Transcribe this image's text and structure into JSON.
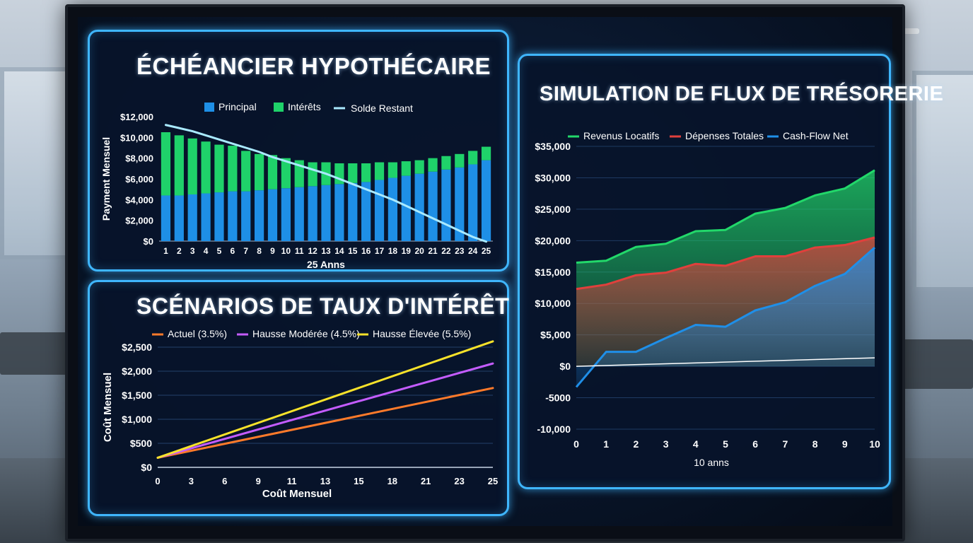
{
  "chart_data": [
    {
      "type": "bar",
      "title": "ÉCHÉANCIER HYPOTHÉCAIRE",
      "xlabel": "25 Anns",
      "ylabel": "Payment Mensuel",
      "ylim": [
        0,
        12000
      ],
      "yticks": [
        "$0",
        "$2,000",
        "$4,000",
        "$6,000",
        "$8,000",
        "$10,000",
        "$12,000"
      ],
      "categories": [
        "1",
        "2",
        "3",
        "4",
        "5",
        "6",
        "7",
        "8",
        "9",
        "10",
        "11",
        "12",
        "13",
        "14",
        "15",
        "16",
        "17",
        "18",
        "19",
        "20",
        "21",
        "22",
        "23",
        "24",
        "25"
      ],
      "stacked": true,
      "series": [
        {
          "name": "Principal",
          "color": "#1e8fe6",
          "values": [
            4400,
            4400,
            4500,
            4600,
            4700,
            4800,
            4800,
            4900,
            5000,
            5100,
            5200,
            5300,
            5400,
            5500,
            5600,
            5700,
            5900,
            6100,
            6300,
            6500,
            6700,
            6900,
            7100,
            7400,
            7800
          ]
        },
        {
          "name": "Intérêts",
          "color": "#1fd26a",
          "values": [
            6100,
            5800,
            5400,
            5000,
            4600,
            4400,
            3900,
            3500,
            3300,
            2900,
            2600,
            2300,
            2200,
            2000,
            1900,
            1800,
            1700,
            1500,
            1400,
            1300,
            1300,
            1300,
            1300,
            1300,
            1300
          ]
        },
        {
          "name": "Solde Restant",
          "type": "line",
          "color": "#a9eaff",
          "values": [
            11200,
            10900,
            10600,
            10200,
            9800,
            9400,
            9000,
            8600,
            8100,
            7700,
            7300,
            6900,
            6500,
            6000,
            5500,
            5000,
            4500,
            4000,
            3400,
            2800,
            2200,
            1600,
            1000,
            400,
            -50
          ]
        }
      ],
      "legend": "top"
    },
    {
      "type": "line",
      "title": "SCÉNARIOS DE TAUX D'INTÉRÊT",
      "xlabel": "Coût Mensuel",
      "ylabel": "Coût Mensuel",
      "ylim": [
        0,
        2500
      ],
      "yticks": [
        "$0",
        "$500",
        "$1,000",
        "$1,500",
        "$2,000",
        "$2,500"
      ],
      "xticks": [
        "0",
        "3",
        "6",
        "9",
        "11",
        "13",
        "15",
        "18",
        "21",
        "23",
        "25"
      ],
      "x": [
        0,
        25
      ],
      "series": [
        {
          "name": "Actuel (3.5%)",
          "color": "#ff7a2a",
          "values": [
            200,
            1650
          ]
        },
        {
          "name": "Hausse Modérée (4.5%)",
          "color": "#c45cff",
          "values": [
            200,
            2160
          ]
        },
        {
          "name": "Hausse Élevée (5.5%)",
          "color": "#f7e22a",
          "values": [
            200,
            2620
          ]
        }
      ],
      "legend": "top"
    },
    {
      "type": "area",
      "title": "SIMULATION DE FLUX DE TRÉSORERIE",
      "xlabel": "10 anns",
      "ylim": [
        -10000,
        35000
      ],
      "yticks": [
        "-10,000",
        "-5000",
        "$0",
        "$5,000",
        "$10,000",
        "$15,000",
        "$20,000",
        "$25,000",
        "$30,000",
        "$35,000"
      ],
      "x": [
        0,
        1,
        2,
        3,
        4,
        5,
        6,
        7,
        8,
        9,
        10
      ],
      "series": [
        {
          "name": "Revenus Locatifs",
          "color": "#22d86a",
          "values": [
            16500,
            16800,
            19000,
            19500,
            21500,
            21700,
            24300,
            25200,
            27200,
            28300,
            31200
          ]
        },
        {
          "name": "Dépenses Totales",
          "color": "#e0403c",
          "values": [
            12300,
            13000,
            14500,
            14900,
            16300,
            16000,
            17500,
            17500,
            18900,
            19300,
            20500
          ]
        },
        {
          "name": "Cash-Flow Net",
          "color": "#1f8fe8",
          "values": [
            -3300,
            2300,
            2300,
            4500,
            6600,
            6300,
            8900,
            10200,
            12800,
            14700,
            18900
          ]
        }
      ],
      "legend": "top"
    }
  ]
}
